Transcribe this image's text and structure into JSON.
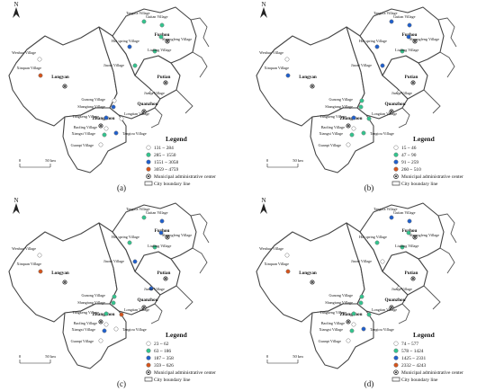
{
  "colors": {
    "class1": "#ffffff",
    "class2": "#33c48e",
    "class3": "#1f5fcc",
    "class4": "#d4541c",
    "boundary": "#444444"
  },
  "common": {
    "north": "N",
    "scale_0": "0",
    "scale_50": "50 km",
    "legend_title": "Legend",
    "center_label": "Municipal administrative center",
    "boundary_label": "City boundary line",
    "cities": {
      "fuzhou": "Fuzhou",
      "putian": "Putian",
      "quanzhou": "Quanzhou",
      "zhangzhou": "Zhangzhou",
      "longyan": "Longyan"
    },
    "villages": {
      "tangxia": "Tangxia Village",
      "guitan": "Guitan Village",
      "shuangfeng": "Shuangfeng Village",
      "hot_spring": "Hot spring Village",
      "liufang": "Liufang Village",
      "jiaoxi": "Jiaoxi Village",
      "jiushi": "Jiushi Village",
      "wenhuo": "Wenhuo Village",
      "xinquan": "Xinquan Village",
      "gunong": "Gunong Village",
      "shangtang": "Shangtang Village",
      "tangkeng": "Tangkeng Village",
      "baoling": "Baoling Village",
      "xiangxi": "Xiangxi Village",
      "guanpi": "Guanpi Village",
      "longtian": "Longtian Village",
      "tangtou": "Tangtou Village"
    }
  },
  "panels": [
    {
      "label": "(a)",
      "legend_ranges": [
        "131 ~ 284",
        "285 ~ 1550",
        "1551 ~ 3058",
        "3059 ~ 4759"
      ],
      "village_classes": {
        "tangxia": 2,
        "guitan": 2,
        "shuangfeng": 2,
        "hot_spring": 3,
        "liufang": 2,
        "jiaoxi": 2,
        "jiushi": 1,
        "wenhuo": 1,
        "xinquan": 4,
        "gunong": 1,
        "shangtang": 3,
        "tangkeng": 3,
        "baoling": 1,
        "xiangxi": 2,
        "guanpi": 1,
        "longtian": 1,
        "tangtou": 3
      }
    },
    {
      "label": "(b)",
      "legend_ranges": [
        "15 ~ 46",
        "47 ~ 90",
        "91 ~ 259",
        "260 ~ 510"
      ],
      "village_classes": {
        "tangxia": 3,
        "guitan": 3,
        "shuangfeng": 3,
        "hot_spring": 3,
        "liufang": 2,
        "jiaoxi": 3,
        "jiushi": 1,
        "wenhuo": 1,
        "xinquan": 3,
        "gunong": 2,
        "shangtang": 2,
        "tangkeng": 3,
        "baoling": 1,
        "xiangxi": 2,
        "guanpi": 1,
        "longtian": 2,
        "tangtou": 2
      }
    },
    {
      "label": "(c)",
      "legend_ranges": [
        "23 ~ 62",
        "63 ~ 186",
        "187 ~ 358",
        "359 ~ 626"
      ],
      "village_classes": {
        "tangxia": 2,
        "guitan": 3,
        "shuangfeng": 3,
        "hot_spring": 2,
        "liufang": 2,
        "jiaoxi": 3,
        "jiushi": 3,
        "wenhuo": 1,
        "xinquan": 4,
        "gunong": 2,
        "shangtang": 2,
        "tangkeng": 2,
        "baoling": 1,
        "xiangxi": 3,
        "guanpi": 1,
        "longtian": 4,
        "tangtou": 1
      }
    },
    {
      "label": "(d)",
      "legend_ranges": [
        "74 ~ 577",
        "578 ~ 1424",
        "1425 ~ 2331",
        "2332 ~ 4243"
      ],
      "village_classes": {
        "tangxia": 3,
        "guitan": 3,
        "shuangfeng": 2,
        "hot_spring": 2,
        "liufang": 2,
        "jiaoxi": 1,
        "jiushi": 1,
        "wenhuo": 1,
        "xinquan": 4,
        "gunong": 2,
        "shangtang": 2,
        "tangkeng": 2,
        "baoling": 1,
        "xiangxi": 2,
        "guanpi": 1,
        "longtian": 2,
        "tangtou": 3
      }
    }
  ]
}
